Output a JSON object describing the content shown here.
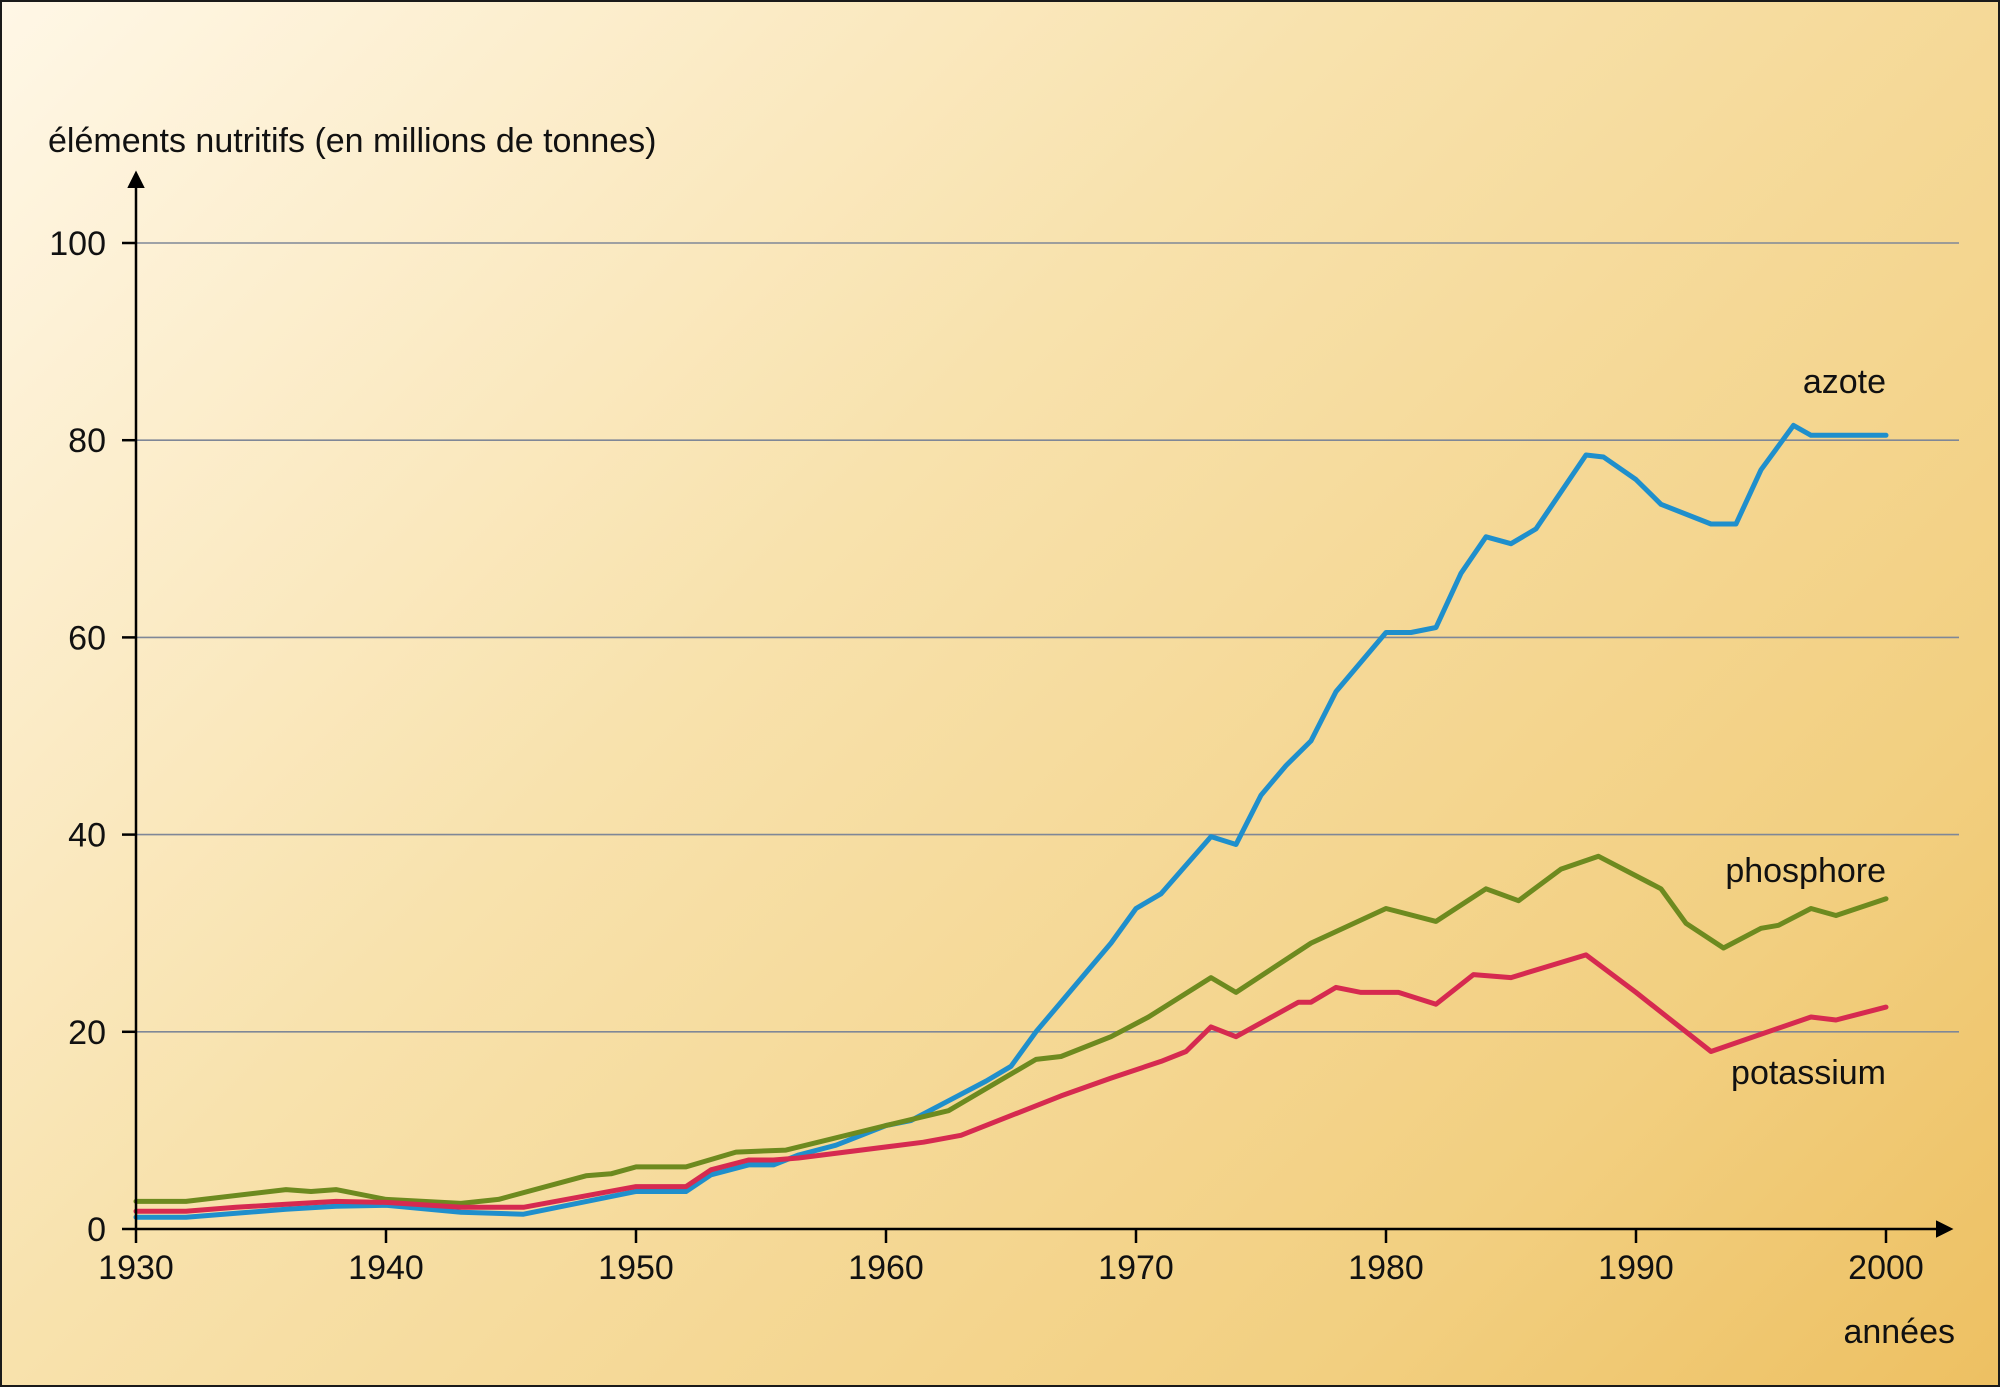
{
  "chart_data": {
    "type": "line",
    "title": "",
    "ylabel": "éléments nutritifs (en millions de tonnes)",
    "xlabel": "années",
    "xlim": [
      1930,
      2002.5
    ],
    "ylim": [
      0,
      104
    ],
    "x_ticks": [
      1930,
      1940,
      1950,
      1960,
      1970,
      1980,
      1990,
      2000
    ],
    "y_ticks": [
      0,
      20,
      40,
      60,
      80,
      100
    ],
    "x_tick_labels": [
      "1930",
      "1940",
      "1950",
      "1960",
      "1970",
      "1980",
      "1990",
      "2000"
    ],
    "y_tick_labels": [
      "0",
      "20",
      "40",
      "60",
      "80",
      "100"
    ],
    "grid": true,
    "series": [
      {
        "name": "azote",
        "color": "#1f8fcc",
        "points": [
          [
            1930,
            1.2
          ],
          [
            1932,
            1.2
          ],
          [
            1936,
            2.0
          ],
          [
            1938,
            2.3
          ],
          [
            1940,
            2.4
          ],
          [
            1943,
            1.7
          ],
          [
            1945.5,
            1.5
          ],
          [
            1950,
            3.8
          ],
          [
            1952,
            3.8
          ],
          [
            1953,
            5.5
          ],
          [
            1954.5,
            6.5
          ],
          [
            1955.5,
            6.5
          ],
          [
            1956.5,
            7.5
          ],
          [
            1958,
            8.5
          ],
          [
            1960,
            10.5
          ],
          [
            1961,
            11.0
          ],
          [
            1962.5,
            13.0
          ],
          [
            1964,
            15.0
          ],
          [
            1965,
            16.5
          ],
          [
            1966,
            20.0
          ],
          [
            1967,
            23.0
          ],
          [
            1968,
            26.0
          ],
          [
            1969,
            29.0
          ],
          [
            1970,
            32.5
          ],
          [
            1971,
            34.0
          ],
          [
            1973,
            39.8
          ],
          [
            1974,
            39.0
          ],
          [
            1975,
            44.0
          ],
          [
            1976,
            47.0
          ],
          [
            1977,
            49.5
          ],
          [
            1978,
            54.5
          ],
          [
            1980,
            60.5
          ],
          [
            1981,
            60.5
          ],
          [
            1982,
            61.0
          ],
          [
            1983,
            66.5
          ],
          [
            1984,
            70.2
          ],
          [
            1985,
            69.5
          ],
          [
            1986,
            71.0
          ],
          [
            1988,
            78.5
          ],
          [
            1988.7,
            78.3
          ],
          [
            1990,
            76.0
          ],
          [
            1991,
            73.5
          ],
          [
            1993,
            71.5
          ],
          [
            1994,
            71.5
          ],
          [
            1995,
            77.0
          ],
          [
            1996.3,
            81.5
          ],
          [
            1997,
            80.5
          ],
          [
            1998,
            80.5
          ],
          [
            2000,
            80.5
          ]
        ]
      },
      {
        "name": "phosphore",
        "color": "#6d8a1f",
        "points": [
          [
            1930,
            2.8
          ],
          [
            1932,
            2.8
          ],
          [
            1936,
            4.0
          ],
          [
            1937,
            3.8
          ],
          [
            1938,
            4.0
          ],
          [
            1940,
            3.0
          ],
          [
            1943,
            2.6
          ],
          [
            1944.5,
            3.0
          ],
          [
            1948,
            5.4
          ],
          [
            1949,
            5.6
          ],
          [
            1950,
            6.3
          ],
          [
            1952,
            6.3
          ],
          [
            1954,
            7.8
          ],
          [
            1956,
            8.0
          ],
          [
            1960,
            10.5
          ],
          [
            1962.5,
            12.0
          ],
          [
            1966,
            17.2
          ],
          [
            1967,
            17.5
          ],
          [
            1969,
            19.5
          ],
          [
            1970.5,
            21.5
          ],
          [
            1973,
            25.5
          ],
          [
            1974,
            24.0
          ],
          [
            1977,
            29.0
          ],
          [
            1980,
            32.5
          ],
          [
            1982,
            31.2
          ],
          [
            1984,
            34.5
          ],
          [
            1985.3,
            33.3
          ],
          [
            1987,
            36.5
          ],
          [
            1988.5,
            37.8
          ],
          [
            1991,
            34.5
          ],
          [
            1992,
            31.0
          ],
          [
            1993.5,
            28.5
          ],
          [
            1995,
            30.5
          ],
          [
            1995.7,
            30.8
          ],
          [
            1997,
            32.5
          ],
          [
            1998,
            31.8
          ],
          [
            2000,
            33.5
          ]
        ]
      },
      {
        "name": "potassium",
        "color": "#d62a50",
        "points": [
          [
            1930,
            1.8
          ],
          [
            1932,
            1.8
          ],
          [
            1934,
            2.2
          ],
          [
            1936,
            2.5
          ],
          [
            1938,
            2.8
          ],
          [
            1940,
            2.7
          ],
          [
            1943,
            2.2
          ],
          [
            1945.5,
            2.2
          ],
          [
            1950,
            4.3
          ],
          [
            1952,
            4.3
          ],
          [
            1953,
            6.0
          ],
          [
            1954.5,
            7.0
          ],
          [
            1955.5,
            7.0
          ],
          [
            1956.5,
            7.2
          ],
          [
            1961.5,
            8.8
          ],
          [
            1963,
            9.5
          ],
          [
            1965,
            11.5
          ],
          [
            1967,
            13.5
          ],
          [
            1969,
            15.3
          ],
          [
            1971,
            17.0
          ],
          [
            1972,
            18.0
          ],
          [
            1973,
            20.5
          ],
          [
            1974,
            19.5
          ],
          [
            1976.5,
            23.0
          ],
          [
            1977,
            23.0
          ],
          [
            1978,
            24.5
          ],
          [
            1979,
            24.0
          ],
          [
            1980.5,
            24.0
          ],
          [
            1982,
            22.8
          ],
          [
            1983.5,
            25.8
          ],
          [
            1985,
            25.5
          ],
          [
            1988,
            27.8
          ],
          [
            1990,
            24.0
          ],
          [
            1993,
            18.0
          ],
          [
            1997,
            21.5
          ],
          [
            1998,
            21.2
          ],
          [
            2000,
            22.5
          ]
        ]
      }
    ]
  }
}
